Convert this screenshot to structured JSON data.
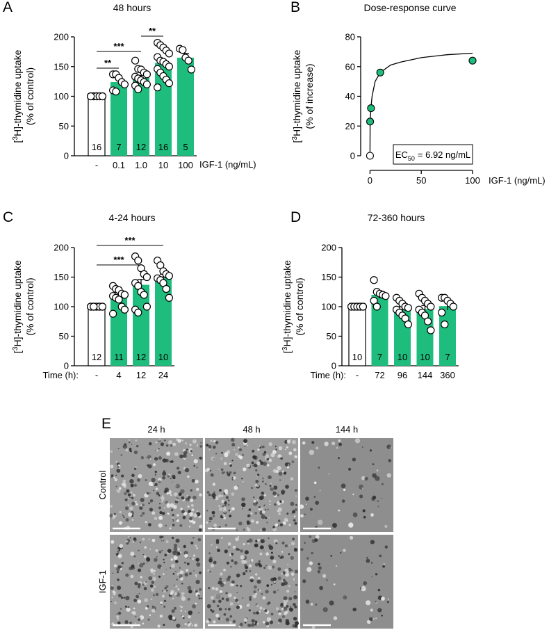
{
  "chart_data": [
    {
      "type": "bar",
      "panel": "A",
      "title": "48 hours",
      "ylabel": {
        "prefix": "[",
        "superscript": "3",
        "text": "H]-thymidine uptake",
        "second_line": "(% of control)"
      },
      "xlabel": "IGF-1 (ng/mL)",
      "categories": [
        "-",
        "0.1",
        "1.0",
        "10",
        "100"
      ],
      "values": [
        100,
        124,
        131,
        156,
        165
      ],
      "errors": [
        0,
        4,
        4,
        5,
        7
      ],
      "n": [
        "16",
        "7",
        "12",
        "16",
        "5"
      ],
      "colors": [
        "#ffffff",
        "#1ebd7d",
        "#1ebd7d",
        "#1ebd7d",
        "#1ebd7d"
      ],
      "points": [
        [
          100,
          100,
          100,
          100,
          100,
          100,
          100,
          100,
          100,
          100,
          100,
          100,
          100,
          100,
          100,
          100
        ],
        [
          137,
          137,
          131,
          124,
          120,
          110,
          108
        ],
        [
          160,
          146,
          145,
          140,
          137,
          133,
          130,
          127,
          124,
          120,
          118,
          112
        ],
        [
          190,
          186,
          182,
          177,
          172,
          166,
          160,
          158,
          154,
          150,
          146,
          140,
          134,
          128,
          122,
          115
        ],
        [
          180,
          178,
          165,
          160,
          145
        ]
      ],
      "annotations": [
        "**",
        "***",
        "**"
      ],
      "ylim": [
        0,
        200
      ],
      "yticks": [
        0,
        50,
        100,
        150,
        200
      ]
    },
    {
      "type": "scatter",
      "panel": "B",
      "title": "Dose-response curve",
      "ylabel": {
        "prefix": "[",
        "superscript": "3",
        "text": "H]-thymidine uptake",
        "second_line": "(% of increase)"
      },
      "xlabel": "IGF-1 (ng/mL)",
      "x": [
        0,
        0.1,
        1,
        10,
        100
      ],
      "values": [
        0,
        23,
        32,
        56,
        64
      ],
      "colors": [
        "#ffffff",
        "#1ebd7d",
        "#1ebd7d",
        "#1ebd7d",
        "#1ebd7d"
      ],
      "fit": {
        "x": [
          0,
          0.1,
          1,
          2,
          5,
          10,
          20,
          30,
          50,
          75,
          100
        ],
        "y": [
          0,
          23,
          33,
          40,
          50,
          56,
          61,
          63,
          66,
          68,
          69
        ]
      },
      "annotation": {
        "text": "EC",
        "subscript": "50",
        "value_text": "= 6.92 ng/mL"
      },
      "xlim": [
        -3,
        100
      ],
      "xticks": [
        0,
        50,
        100
      ],
      "ylim": [
        0,
        80
      ],
      "yticks": [
        0,
        20,
        40,
        60,
        80
      ]
    },
    {
      "type": "bar",
      "panel": "C",
      "title": "4-24 hours",
      "ylabel": {
        "prefix": "[",
        "superscript": "3",
        "text": "H]-thymidine uptake",
        "second_line": "(% of control)"
      },
      "xlabel": "Time (h):",
      "categories": [
        "-",
        "4",
        "12",
        "24"
      ],
      "values": [
        100,
        115,
        137,
        149
      ],
      "errors": [
        0,
        5,
        9,
        6
      ],
      "n": [
        "12",
        "11",
        "12",
        "10"
      ],
      "colors": [
        "#ffffff",
        "#1ebd7d",
        "#1ebd7d",
        "#1ebd7d"
      ],
      "points": [
        [
          100,
          100,
          100,
          100,
          100,
          100,
          100,
          100,
          100,
          100,
          100,
          100
        ],
        [
          135,
          130,
          128,
          122,
          120,
          118,
          115,
          112,
          100,
          95,
          88
        ],
        [
          185,
          178,
          165,
          155,
          150,
          140,
          135,
          125,
          120,
          100,
          95,
          90
        ],
        [
          178,
          170,
          160,
          155,
          152,
          148,
          145,
          140,
          130,
          115
        ]
      ],
      "annotations": [
        "***",
        "***"
      ],
      "ylim": [
        0,
        200
      ],
      "yticks": [
        0,
        50,
        100,
        150,
        200
      ]
    },
    {
      "type": "bar",
      "panel": "D",
      "title": "72-360 hours",
      "ylabel": {
        "prefix": "[",
        "superscript": "3",
        "text": "H]-thymidine uptake",
        "second_line": "(% of control)"
      },
      "xlabel": "Time (h):",
      "categories": [
        "-",
        "72",
        "96",
        "144",
        "360"
      ],
      "values": [
        100,
        120,
        95,
        96,
        101
      ],
      "errors": [
        0,
        6,
        5,
        6,
        7
      ],
      "n": [
        "10",
        "7",
        "10",
        "10",
        "7"
      ],
      "colors": [
        "#ffffff",
        "#1ebd7d",
        "#1ebd7d",
        "#1ebd7d",
        "#1ebd7d"
      ],
      "points": [
        [
          100,
          100,
          100,
          100,
          100,
          100,
          100,
          100,
          100,
          100
        ],
        [
          145,
          125,
          122,
          120,
          118,
          110,
          100
        ],
        [
          115,
          110,
          105,
          100,
          98,
          95,
          90,
          85,
          80,
          70
        ],
        [
          122,
          115,
          110,
          105,
          100,
          95,
          90,
          85,
          75,
          60
        ],
        [
          115,
          115,
          110,
          105,
          100,
          90,
          70
        ]
      ],
      "annotations": [],
      "ylim": [
        0,
        200
      ],
      "yticks": [
        0,
        50,
        100,
        150,
        200
      ]
    }
  ],
  "panel_e": {
    "panel": "E",
    "columns": [
      "24 h",
      "48 h",
      "144 h"
    ],
    "rows": [
      "Control",
      "IGF-1"
    ]
  }
}
